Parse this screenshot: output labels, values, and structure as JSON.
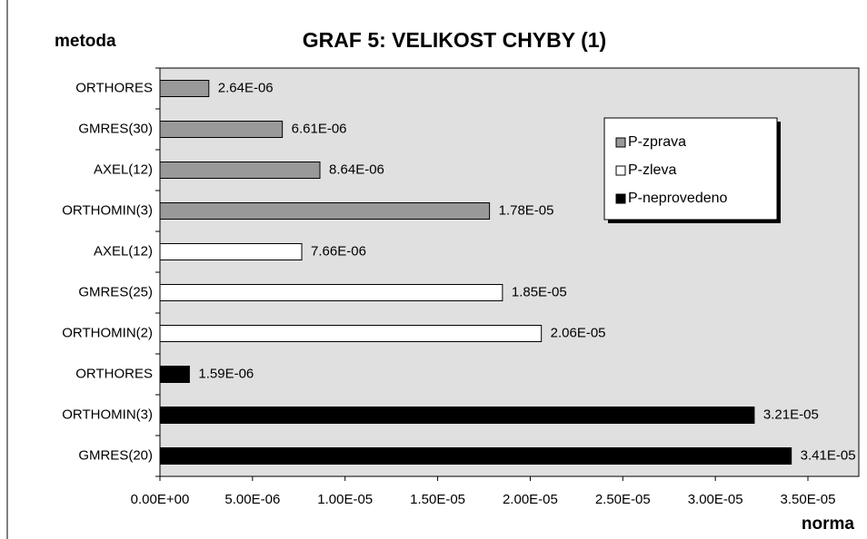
{
  "chart_data": {
    "type": "bar",
    "orientation": "horizontal",
    "title": "GRAF 5: VELIKOST CHYBY (1)",
    "y_label": "metoda",
    "x_label": "norma",
    "categories": [
      "ORTHORES",
      "GMRES(30)",
      "AXEL(12)",
      "ORTHOMIN(3)",
      "AXEL(12)",
      "GMRES(25)",
      "ORTHOMIN(2)",
      "ORTHORES",
      "ORTHOMIN(3)",
      "GMRES(20)"
    ],
    "series": [
      {
        "name": "P-zprava",
        "color": "#999999",
        "values": [
          2.64e-06,
          6.61e-06,
          8.64e-06,
          1.78e-05,
          null,
          null,
          null,
          null,
          null,
          null
        ],
        "value_labels": [
          "2.64E-06",
          "6.61E-06",
          "8.64E-06",
          "1.78E-05",
          null,
          null,
          null,
          null,
          null,
          null
        ]
      },
      {
        "name": "P-zleva",
        "color": "#ffffff",
        "values": [
          null,
          null,
          null,
          null,
          7.66e-06,
          1.85e-05,
          2.06e-05,
          null,
          null,
          null
        ],
        "value_labels": [
          null,
          null,
          null,
          null,
          "7.66E-06",
          "1.85E-05",
          "2.06E-05",
          null,
          null,
          null
        ]
      },
      {
        "name": "P-neprovedeno",
        "color": "#000000",
        "values": [
          null,
          null,
          null,
          null,
          null,
          null,
          null,
          1.59e-06,
          3.21e-05,
          3.41e-05
        ],
        "value_labels": [
          null,
          null,
          null,
          null,
          null,
          null,
          null,
          "1.59E-06",
          "3.21E-05",
          "3.41E-05"
        ]
      }
    ],
    "xlim": [
      0,
      3.5e-05
    ],
    "xticks": [
      {
        "value": 0,
        "label": "0.00E+00"
      },
      {
        "value": 5e-06,
        "label": "5.00E-06"
      },
      {
        "value": 1e-05,
        "label": "1.00E-05"
      },
      {
        "value": 1.5e-05,
        "label": "1.50E-05"
      },
      {
        "value": 2e-05,
        "label": "2.00E-05"
      },
      {
        "value": 2.5e-05,
        "label": "2.50E-05"
      },
      {
        "value": 3e-05,
        "label": "3.00E-05"
      },
      {
        "value": 3.5e-05,
        "label": "3.50E-05"
      }
    ],
    "grid": false,
    "legend": "upper right",
    "background": "#e0e0e0"
  }
}
